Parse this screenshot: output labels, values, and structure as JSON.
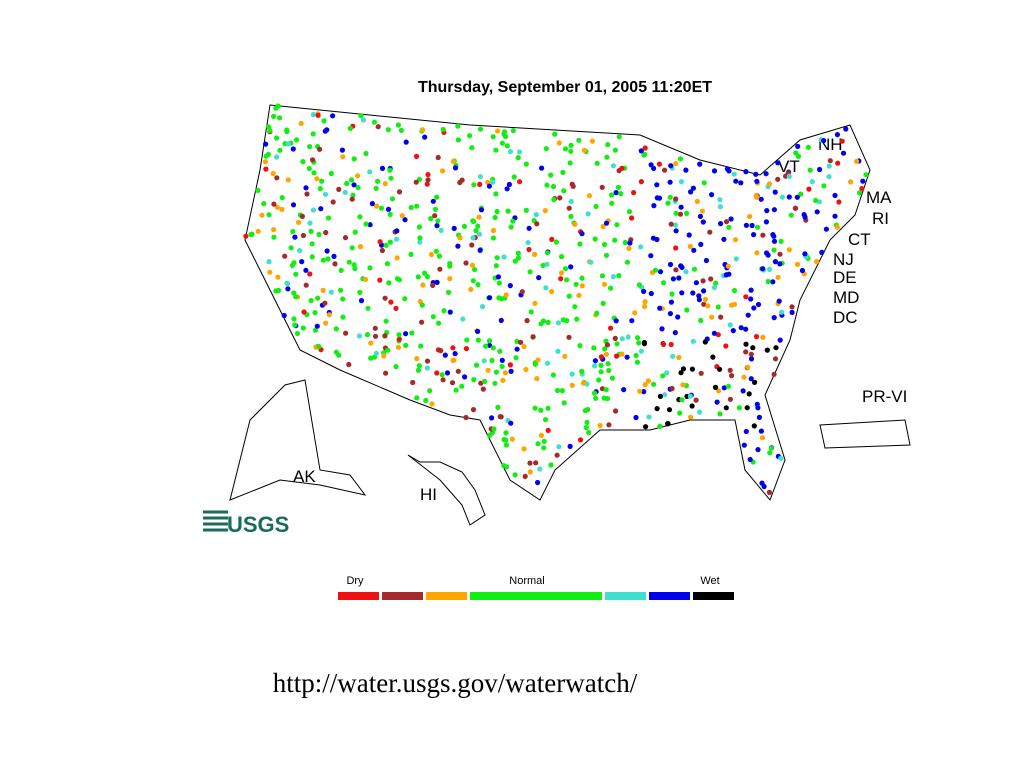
{
  "title": "Thursday, September 01, 2005 11:20ET",
  "labels": [
    "NH",
    "VT",
    "MA",
    "RI",
    "CT",
    "NJ",
    "DE",
    "MD",
    "DC",
    "PR-VI",
    "AK",
    "HI"
  ],
  "logo": "USGS",
  "legend": {
    "labels": [
      "Dry",
      "Normal",
      "Wet"
    ],
    "colors": [
      "#ee1111",
      "#a52a2a",
      "#ffa500",
      "#11ee11",
      "#40e0d0",
      "#0000ee",
      "#000000"
    ]
  },
  "source_url": "http://water.usgs.gov/waterwatch/"
}
